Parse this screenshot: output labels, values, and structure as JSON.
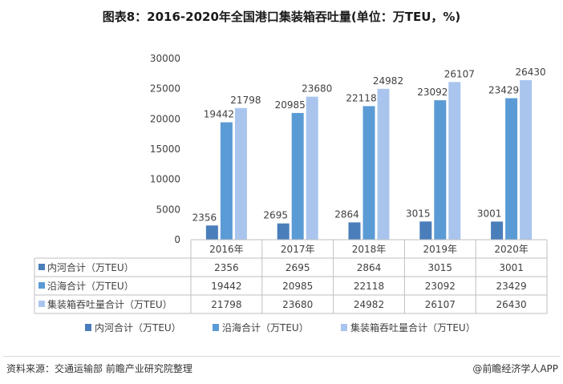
{
  "title": "图表8：2016-2020年全国港口集装箱吞吐量(单位：万TEU，%)",
  "source": "资料来源：交通运输部 前瞻产业研究院整理",
  "brand": "@前瞻经济学人APP",
  "chart_data": {
    "type": "bar",
    "categories": [
      "2016年",
      "2017年",
      "2018年",
      "2019年",
      "2020年"
    ],
    "series": [
      {
        "name": "内河合计（万TEU）",
        "values": [
          2356,
          2695,
          2864,
          3015,
          3001
        ],
        "color": "#4a7ebb"
      },
      {
        "name": "沿海合计（万TEU）",
        "values": [
          19442,
          20985,
          22118,
          23092,
          23429
        ],
        "color": "#5b9bd5"
      },
      {
        "name": "集装箱吞吐量合计（万TEU）",
        "values": [
          21798,
          23680,
          24982,
          26107,
          26430
        ],
        "color": "#a9c5ee"
      }
    ],
    "ylim": [
      0,
      30000
    ],
    "yticks": [
      0,
      5000,
      10000,
      15000,
      20000,
      25000,
      30000
    ],
    "table": true,
    "legend": "bottom",
    "grid": false
  }
}
